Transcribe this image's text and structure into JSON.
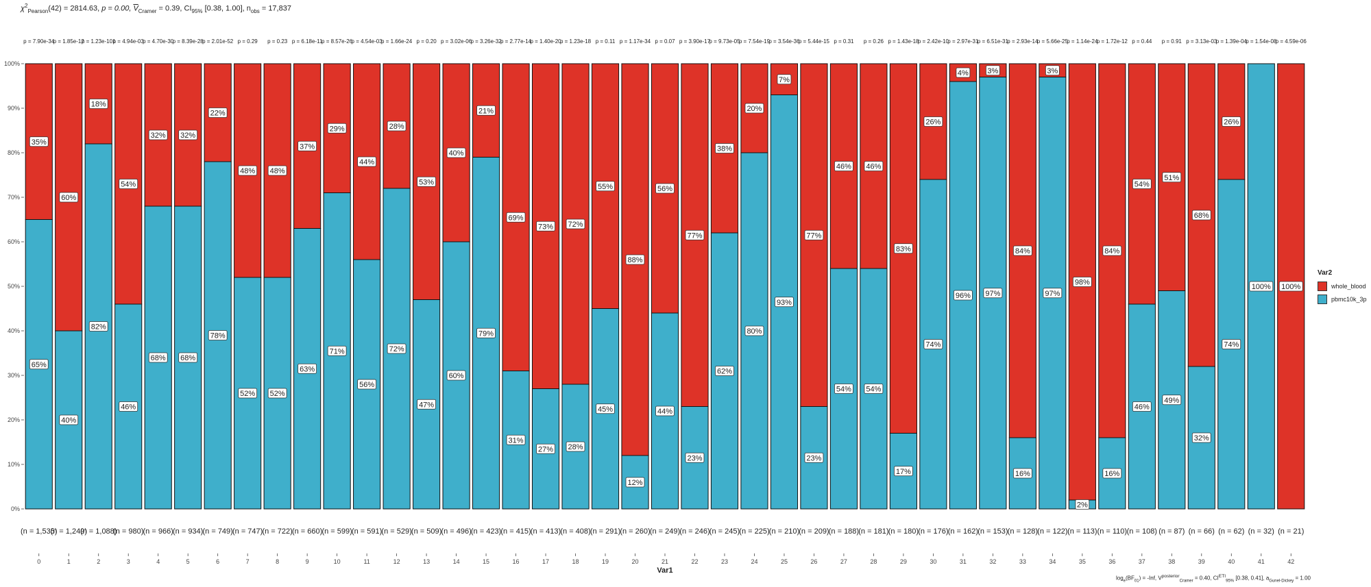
{
  "subtitle": {
    "chi_symbol": "χ",
    "chi_sup": "2",
    "chi_sub": "Pearson",
    "df_part": "(42) = 2814.63, ",
    "p_part": "p = 0.00, ",
    "v_symbol": "V",
    "v_sub": "Cramer",
    "v_part": " = 0.39, CI",
    "ci_sub": "95%",
    "ci_part": " [0.38, 1.00], n",
    "n_sub": "obs",
    "n_part": " = 17,837"
  },
  "caption": {
    "bf_prefix": "log",
    "bf_base": "e",
    "bf_part1": "(BF",
    "bf_sub": "01",
    "bf_part2": ") = -Inf, V",
    "v_sub": "Cramer",
    "v_sup": "posterior",
    "v_part": " = 0.40, CI",
    "ci_sub": "95%",
    "ci_sup": "ETI",
    "ci_part": " [0.38, 0.41], a",
    "a_sub": "Gunel-Dickey",
    "a_part": " = 1.00"
  },
  "legend": {
    "title": "Var2",
    "items": [
      {
        "label": "whole_blood",
        "color": "#DE3328"
      },
      {
        "label": "pbmc10k_3p",
        "color": "#3FAFCB"
      }
    ]
  },
  "chart_data": {
    "type": "bar",
    "stacked": true,
    "percent": true,
    "xlabel": "Var1",
    "ylabel": "",
    "ylim": [
      0,
      100
    ],
    "yticks": [
      "0%",
      "10%",
      "20%",
      "30%",
      "40%",
      "50%",
      "60%",
      "70%",
      "80%",
      "90%",
      "100%"
    ],
    "grid": false,
    "legend_position": "right",
    "categories": [
      "0",
      "1",
      "2",
      "3",
      "4",
      "5",
      "6",
      "7",
      "8",
      "9",
      "10",
      "11",
      "12",
      "13",
      "14",
      "15",
      "16",
      "17",
      "18",
      "19",
      "20",
      "21",
      "22",
      "23",
      "24",
      "25",
      "26",
      "27",
      "28",
      "29",
      "30",
      "31",
      "32",
      "33",
      "34",
      "35",
      "36",
      "37",
      "38",
      "39",
      "40",
      "41",
      "42"
    ],
    "series": [
      {
        "name": "pbmc10k_3p",
        "color": "#3FAFCB",
        "values": [
          65,
          40,
          82,
          46,
          68,
          68,
          78,
          52,
          52,
          63,
          71,
          56,
          72,
          47,
          60,
          79,
          31,
          27,
          28,
          45,
          12,
          44,
          23,
          62,
          80,
          93,
          23,
          54,
          54,
          17,
          74,
          96,
          97,
          16,
          97,
          2,
          16,
          46,
          49,
          32,
          74,
          100,
          0
        ],
        "labels": [
          "65%",
          "40%",
          "82%",
          "46%",
          "68%",
          "68%",
          "78%",
          "52%",
          "52%",
          "63%",
          "71%",
          "56%",
          "72%",
          "47%",
          "60%",
          "79%",
          "31%",
          "27%",
          "28%",
          "45%",
          "12%",
          "44%",
          "23%",
          "62%",
          "80%",
          "93%",
          "23%",
          "54%",
          "54%",
          "17%",
          "74%",
          "96%",
          "97%",
          "16%",
          "97%",
          "2%",
          "16%",
          "46%",
          "49%",
          "32%",
          "74%",
          "100%",
          ""
        ]
      },
      {
        "name": "whole_blood",
        "color": "#DE3328",
        "values": [
          35,
          60,
          18,
          54,
          32,
          32,
          22,
          48,
          48,
          37,
          29,
          44,
          28,
          53,
          40,
          21,
          69,
          73,
          72,
          55,
          88,
          56,
          77,
          38,
          20,
          7,
          77,
          46,
          46,
          83,
          26,
          4,
          3,
          84,
          3,
          98,
          84,
          54,
          51,
          68,
          26,
          0,
          100
        ],
        "labels": [
          "35%",
          "60%",
          "18%",
          "54%",
          "32%",
          "32%",
          "22%",
          "48%",
          "48%",
          "37%",
          "29%",
          "44%",
          "28%",
          "53%",
          "40%",
          "21%",
          "69%",
          "73%",
          "72%",
          "55%",
          "88%",
          "56%",
          "77%",
          "38%",
          "20%",
          "7%",
          "77%",
          "46%",
          "46%",
          "83%",
          "26%",
          "4%",
          "3%",
          "84%",
          "3%",
          "98%",
          "84%",
          "54%",
          "51%",
          "68%",
          "26%",
          "",
          "100%"
        ]
      }
    ],
    "p_labels": [
      "p = 7.90e-34",
      "p = 1.85e-12",
      "p = 1.23e-101",
      "p = 4.94e-03",
      "p = 4.70e-30",
      "p = 8.39e-28",
      "p = 2.01e-52",
      "p = 0.29",
      "p = 0.23",
      "p = 6.18e-11",
      "p = 8.57e-26",
      "p = 4.54e-03",
      "p = 1.66e-24",
      "p = 0.20",
      "p = 3.02e-06",
      "p = 3.26e-32",
      "p = 2.77e-14",
      "p = 1.40e-20",
      "p = 1.23e-18",
      "p = 0.11",
      "p = 1.17e-34",
      "p = 0.07",
      "p = 3.90e-17",
      "p = 9.73e-05",
      "p = 7.54e-19",
      "p = 3.54e-36",
      "p = 5.44e-15",
      "p = 0.31",
      "p = 0.26",
      "p = 1.43e-18",
      "p = 2.42e-10",
      "p = 2.97e-31",
      "p = 6.51e-31",
      "p = 2.93e-14",
      "p = 5.66e-25",
      "p = 1.14e-24",
      "p = 1.72e-12",
      "p = 0.44",
      "p = 0.91",
      "p = 3.13e-03",
      "p = 1.39e-04",
      "p = 1.54e-08",
      "p = 4.59e-06"
    ],
    "n_labels": [
      "(n = 1,535)",
      "(n = 1,249)",
      "(n = 1,088)",
      "(n = 980)",
      "(n = 966)",
      "(n = 934)",
      "(n = 749)",
      "(n = 747)",
      "(n = 722)",
      "(n = 660)",
      "(n = 599)",
      "(n = 591)",
      "(n = 529)",
      "(n = 509)",
      "(n = 496)",
      "(n = 423)",
      "(n = 415)",
      "(n = 413)",
      "(n = 408)",
      "(n = 291)",
      "(n = 260)",
      "(n = 249)",
      "(n = 246)",
      "(n = 245)",
      "(n = 225)",
      "(n = 210)",
      "(n = 209)",
      "(n = 188)",
      "(n = 181)",
      "(n = 180)",
      "(n = 176)",
      "(n = 162)",
      "(n = 153)",
      "(n = 128)",
      "(n = 122)",
      "(n = 113)",
      "(n = 110)",
      "(n = 108)",
      "(n = 87)",
      "(n = 66)",
      "(n = 62)",
      "(n = 32)",
      "(n = 21)"
    ]
  }
}
